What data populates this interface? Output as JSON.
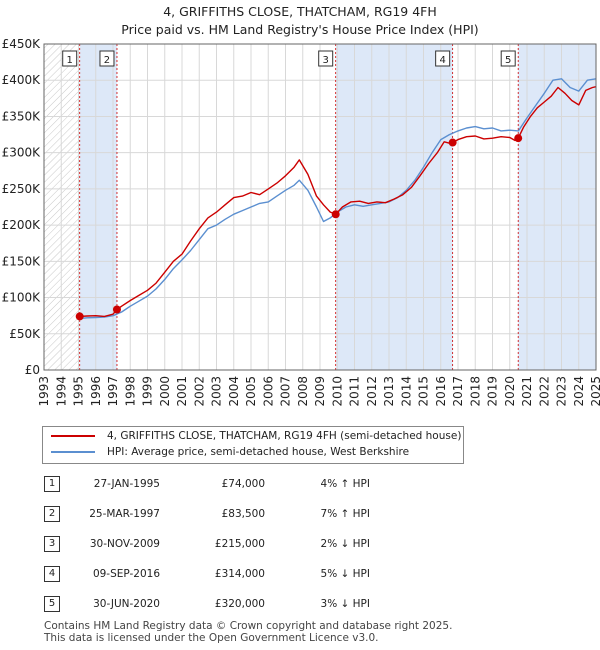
{
  "title_line1": "4, GRIFFITHS CLOSE, THATCHAM, RG19 4FH",
  "title_line2": "Price paid vs. HM Land Registry's House Price Index (HPI)",
  "colors": {
    "property": "#cc0000",
    "hpi": "#5b8fd0",
    "shade": "#dde8f8",
    "hatch": "#c8c8c8"
  },
  "legend": {
    "property": "4, GRIFFITHS CLOSE, THATCHAM, RG19 4FH (semi-detached house)",
    "hpi": "HPI: Average price, semi-detached house, West Berkshire"
  },
  "sales": [
    {
      "num": "1",
      "date": "27-JAN-1995",
      "price": "£74,000",
      "hpi": "4% ↑ HPI"
    },
    {
      "num": "2",
      "date": "25-MAR-1997",
      "price": "£83,500",
      "hpi": "7% ↑ HPI"
    },
    {
      "num": "3",
      "date": "30-NOV-2009",
      "price": "£215,000",
      "hpi": "2% ↓ HPI"
    },
    {
      "num": "4",
      "date": "09-SEP-2016",
      "price": "£314,000",
      "hpi": "5% ↓ HPI"
    },
    {
      "num": "5",
      "date": "30-JUN-2020",
      "price": "£320,000",
      "hpi": "3% ↓ HPI"
    }
  ],
  "footer_line1": "Contains HM Land Registry data © Crown copyright and database right 2025.",
  "footer_line2": "This data is licensed under the Open Government Licence v3.0.",
  "chart_data": {
    "type": "line",
    "title": "4, GRIFFITHS CLOSE, THATCHAM, RG19 4FH",
    "subtitle": "Price paid vs. HM Land Registry's House Price Index (HPI)",
    "xlim": [
      1993,
      2025
    ],
    "ylim": [
      0,
      450000
    ],
    "y_ticks": [
      0,
      50000,
      100000,
      150000,
      200000,
      250000,
      300000,
      350000,
      400000,
      450000
    ],
    "y_tick_labels": [
      "£0",
      "£50K",
      "£100K",
      "£150K",
      "£200K",
      "£250K",
      "£300K",
      "£350K",
      "£400K",
      "£450K"
    ],
    "x_ticks": [
      "1993",
      "1994",
      "1995",
      "1996",
      "1997",
      "1998",
      "1999",
      "2000",
      "2001",
      "2002",
      "2003",
      "2004",
      "2005",
      "2006",
      "2007",
      "2008",
      "2009",
      "2010",
      "2011",
      "2012",
      "2013",
      "2014",
      "2015",
      "2016",
      "2017",
      "2018",
      "2019",
      "2020",
      "2021",
      "2022",
      "2023",
      "2024",
      "2025"
    ],
    "grid": true,
    "legend_position": "bottom",
    "sale_markers": [
      {
        "label": "1",
        "x": 1995.07,
        "y": 74000
      },
      {
        "label": "2",
        "x": 1997.23,
        "y": 83500
      },
      {
        "label": "3",
        "x": 2009.91,
        "y": 215000
      },
      {
        "label": "4",
        "x": 2016.69,
        "y": 314000
      },
      {
        "label": "5",
        "x": 2020.49,
        "y": 320000
      }
    ],
    "series": [
      {
        "name": "4, GRIFFITHS CLOSE, THATCHAM, RG19 4FH (semi-detached house)",
        "x": [
          1995.07,
          1995.5,
          1996.0,
          1996.5,
          1997.0,
          1997.23,
          1997.5,
          1998.0,
          1998.5,
          1999.0,
          1999.5,
          2000.0,
          2000.5,
          2001.0,
          2001.5,
          2002.0,
          2002.5,
          2003.0,
          2003.5,
          2004.0,
          2004.5,
          2005.0,
          2005.5,
          2006.0,
          2006.5,
          2007.0,
          2007.5,
          2007.8,
          2008.3,
          2008.8,
          2009.2,
          2009.6,
          2009.91,
          2010.3,
          2010.8,
          2011.3,
          2011.8,
          2012.3,
          2012.8,
          2013.3,
          2013.8,
          2014.3,
          2014.8,
          2015.3,
          2015.8,
          2016.2,
          2016.5,
          2016.69,
          2017.0,
          2017.5,
          2018.0,
          2018.5,
          2019.0,
          2019.5,
          2020.0,
          2020.3,
          2020.49,
          2020.8,
          2021.2,
          2021.6,
          2022.0,
          2022.4,
          2022.8,
          2023.2,
          2023.6,
          2024.0,
          2024.4,
          2024.8,
          2025.0
        ],
        "values": [
          74000,
          74500,
          75000,
          74000,
          77000,
          83500,
          88000,
          96000,
          103000,
          110000,
          120000,
          135000,
          150000,
          160000,
          178000,
          195000,
          210000,
          218000,
          228000,
          238000,
          240000,
          245000,
          242000,
          250000,
          258000,
          268000,
          280000,
          290000,
          270000,
          240000,
          228000,
          218000,
          215000,
          225000,
          232000,
          233000,
          230000,
          232000,
          231000,
          236000,
          242000,
          252000,
          268000,
          285000,
          300000,
          315000,
          313000,
          314000,
          318000,
          322000,
          323000,
          319000,
          320000,
          322000,
          321000,
          317000,
          320000,
          335000,
          350000,
          362000,
          370000,
          378000,
          390000,
          382000,
          372000,
          366000,
          386000,
          390000,
          391000
        ]
      },
      {
        "name": "HPI: Average price, semi-detached house, West Berkshire",
        "x": [
          1995.0,
          1995.5,
          1996.0,
          1996.5,
          1997.0,
          1997.5,
          1998.0,
          1998.5,
          1999.0,
          1999.5,
          2000.0,
          2000.5,
          2001.0,
          2001.5,
          2002.0,
          2002.5,
          2003.0,
          2003.5,
          2004.0,
          2004.5,
          2005.0,
          2005.5,
          2006.0,
          2006.5,
          2007.0,
          2007.5,
          2007.8,
          2008.3,
          2008.8,
          2009.2,
          2009.6,
          2010.0,
          2010.5,
          2011.0,
          2011.5,
          2012.0,
          2012.5,
          2013.0,
          2013.5,
          2014.0,
          2014.5,
          2015.0,
          2015.5,
          2016.0,
          2016.5,
          2017.0,
          2017.5,
          2018.0,
          2018.5,
          2019.0,
          2019.5,
          2020.0,
          2020.5,
          2021.0,
          2021.5,
          2022.0,
          2022.5,
          2023.0,
          2023.5,
          2024.0,
          2024.5,
          2025.0
        ],
        "values": [
          71000,
          72000,
          72500,
          73000,
          75000,
          80000,
          88000,
          95000,
          102000,
          112000,
          125000,
          140000,
          152000,
          165000,
          180000,
          195000,
          200000,
          208000,
          215000,
          220000,
          225000,
          230000,
          232000,
          240000,
          248000,
          255000,
          262000,
          248000,
          225000,
          205000,
          210000,
          218000,
          225000,
          228000,
          226000,
          228000,
          230000,
          232000,
          238000,
          248000,
          262000,
          280000,
          300000,
          318000,
          325000,
          330000,
          334000,
          336000,
          333000,
          334000,
          330000,
          331000,
          330000,
          348000,
          365000,
          382000,
          400000,
          402000,
          390000,
          385000,
          400000,
          402000
        ]
      }
    ]
  }
}
